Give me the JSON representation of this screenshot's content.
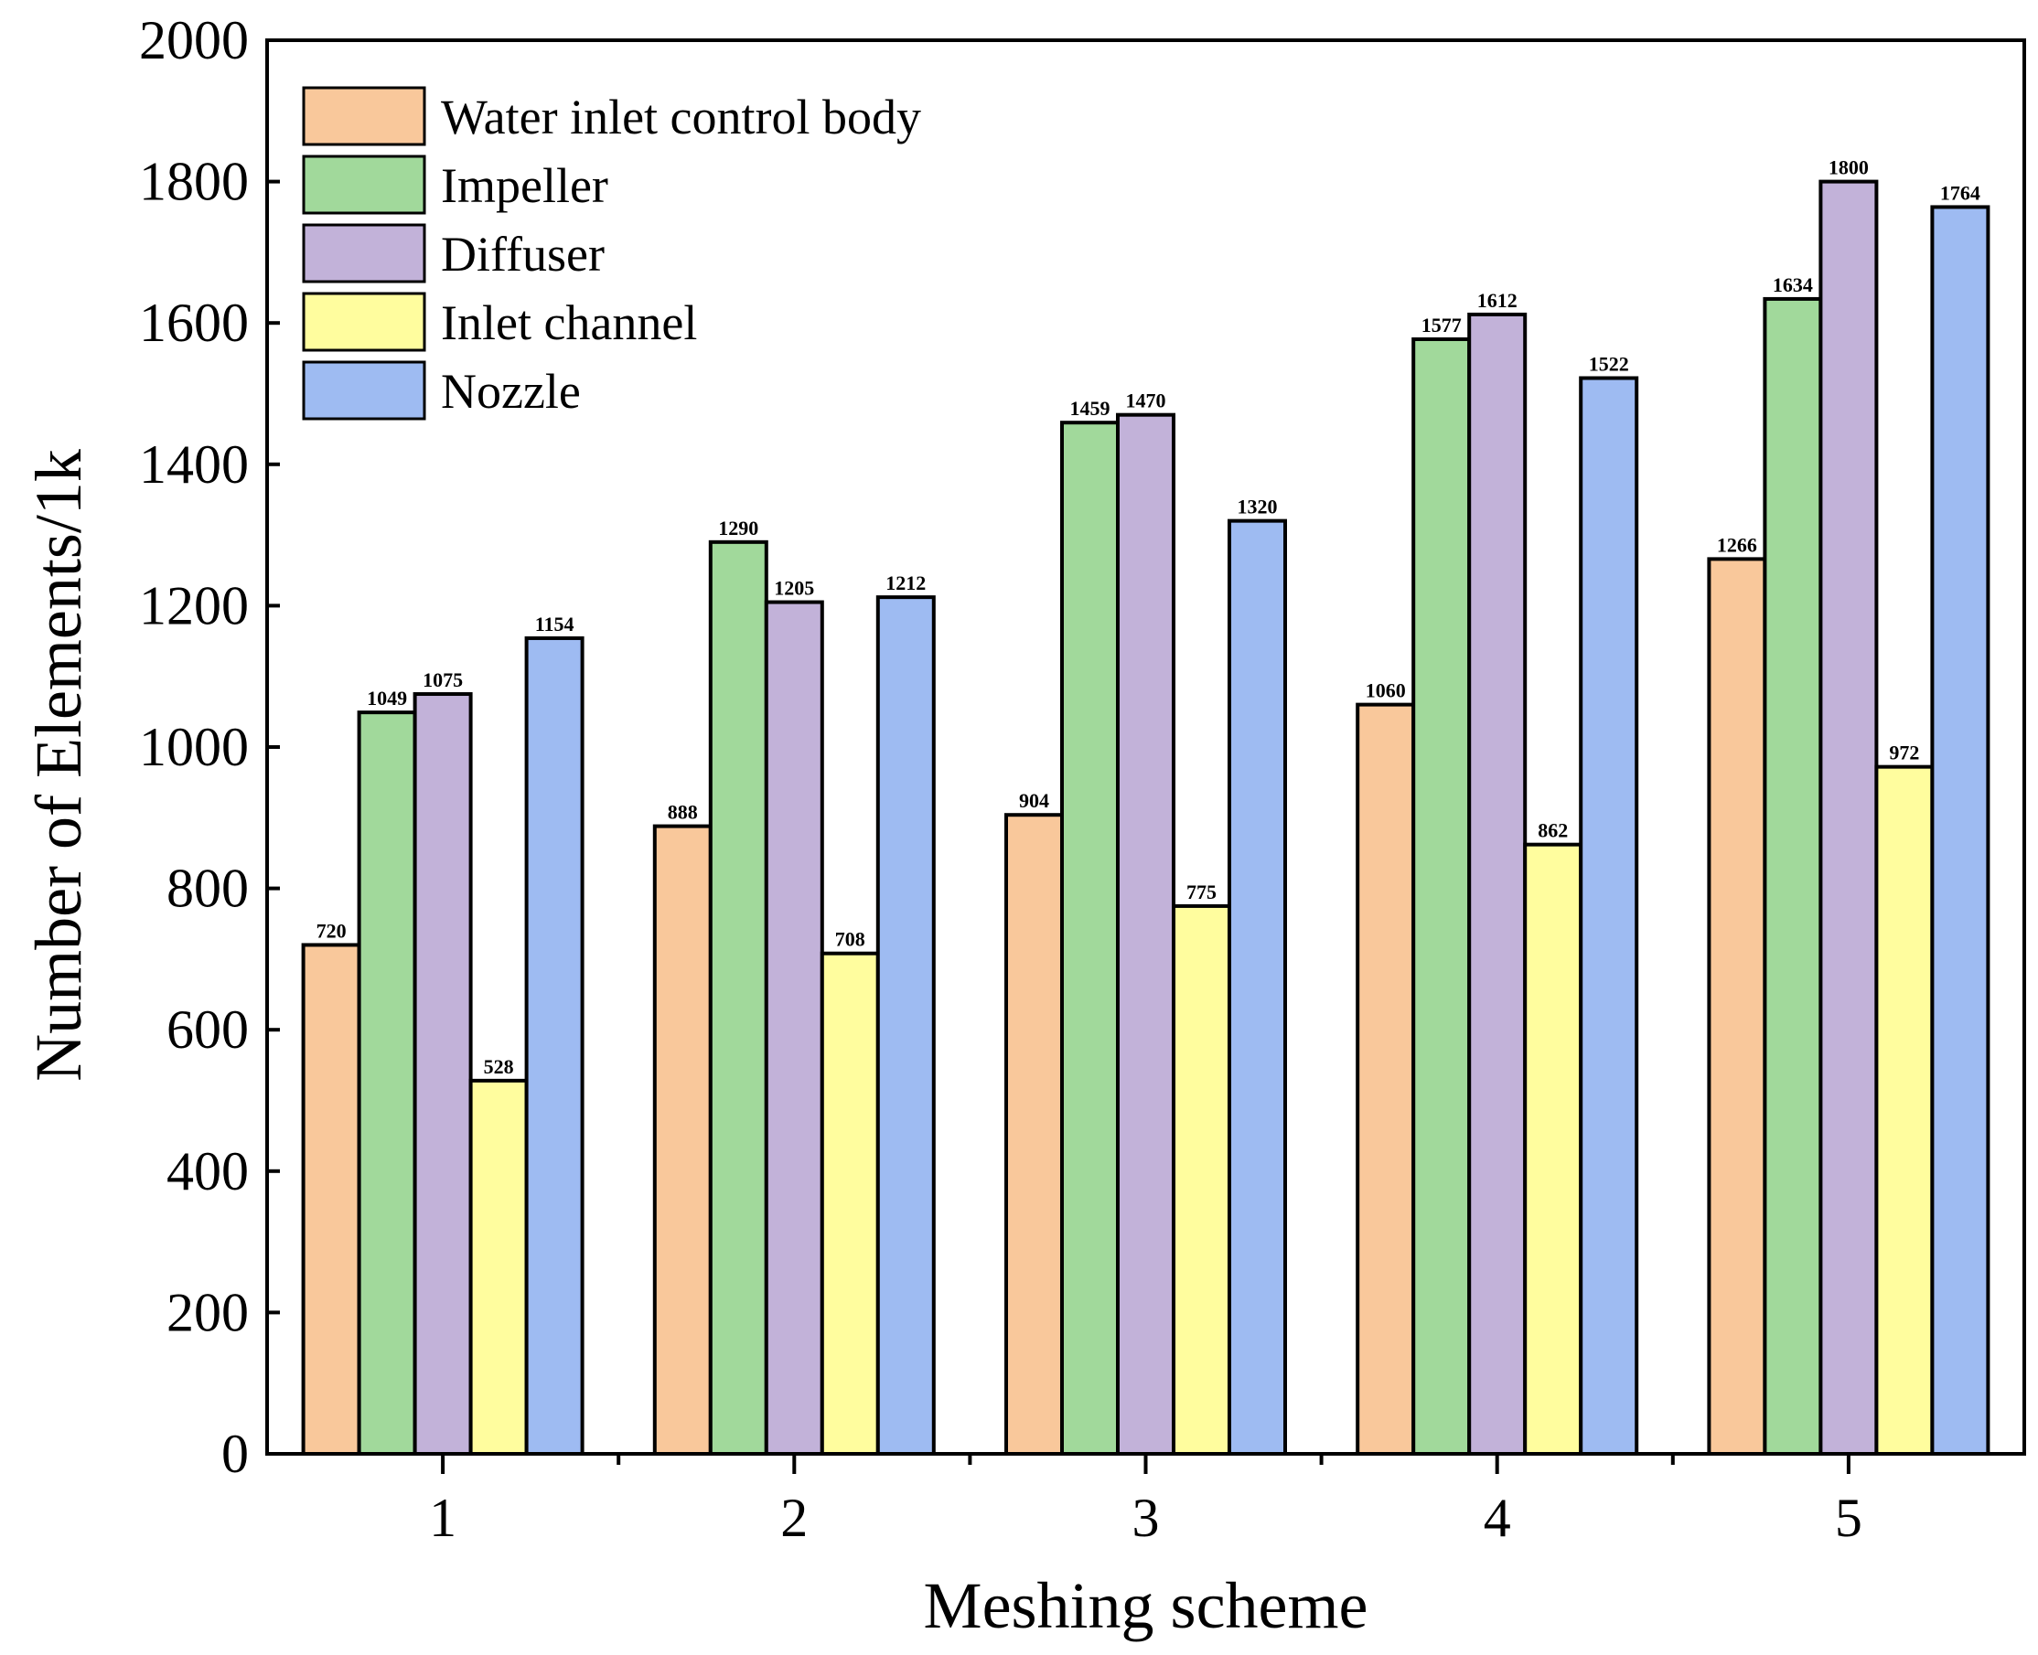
{
  "chart_data": {
    "type": "bar",
    "title": "",
    "xlabel": "Meshing scheme",
    "ylabel": "Number of Elements/1k",
    "categories": [
      "1",
      "2",
      "3",
      "4",
      "5"
    ],
    "ylim": [
      0,
      2000
    ],
    "yticks": [
      "0",
      "200",
      "400",
      "600",
      "800",
      "1000",
      "1200",
      "1400",
      "1600",
      "1800",
      "2000"
    ],
    "grid": false,
    "legend_position": "top-left",
    "series": [
      {
        "name": "Water inlet control body",
        "color": "#F9C89B",
        "values": [
          720,
          888,
          904,
          1060,
          1266
        ]
      },
      {
        "name": "Impeller",
        "color": "#A1D99B",
        "values": [
          1049,
          1290,
          1459,
          1577,
          1634
        ]
      },
      {
        "name": "Diffuser",
        "color": "#C2B2D9",
        "values": [
          1075,
          1205,
          1470,
          1612,
          1800
        ]
      },
      {
        "name": "Inlet channel",
        "color": "#FFFD9E",
        "values": [
          528,
          708,
          775,
          862,
          972
        ]
      },
      {
        "name": "Nozzle",
        "color": "#9EBBF2",
        "values": [
          1154,
          1212,
          1320,
          1522,
          1764
        ]
      }
    ]
  }
}
